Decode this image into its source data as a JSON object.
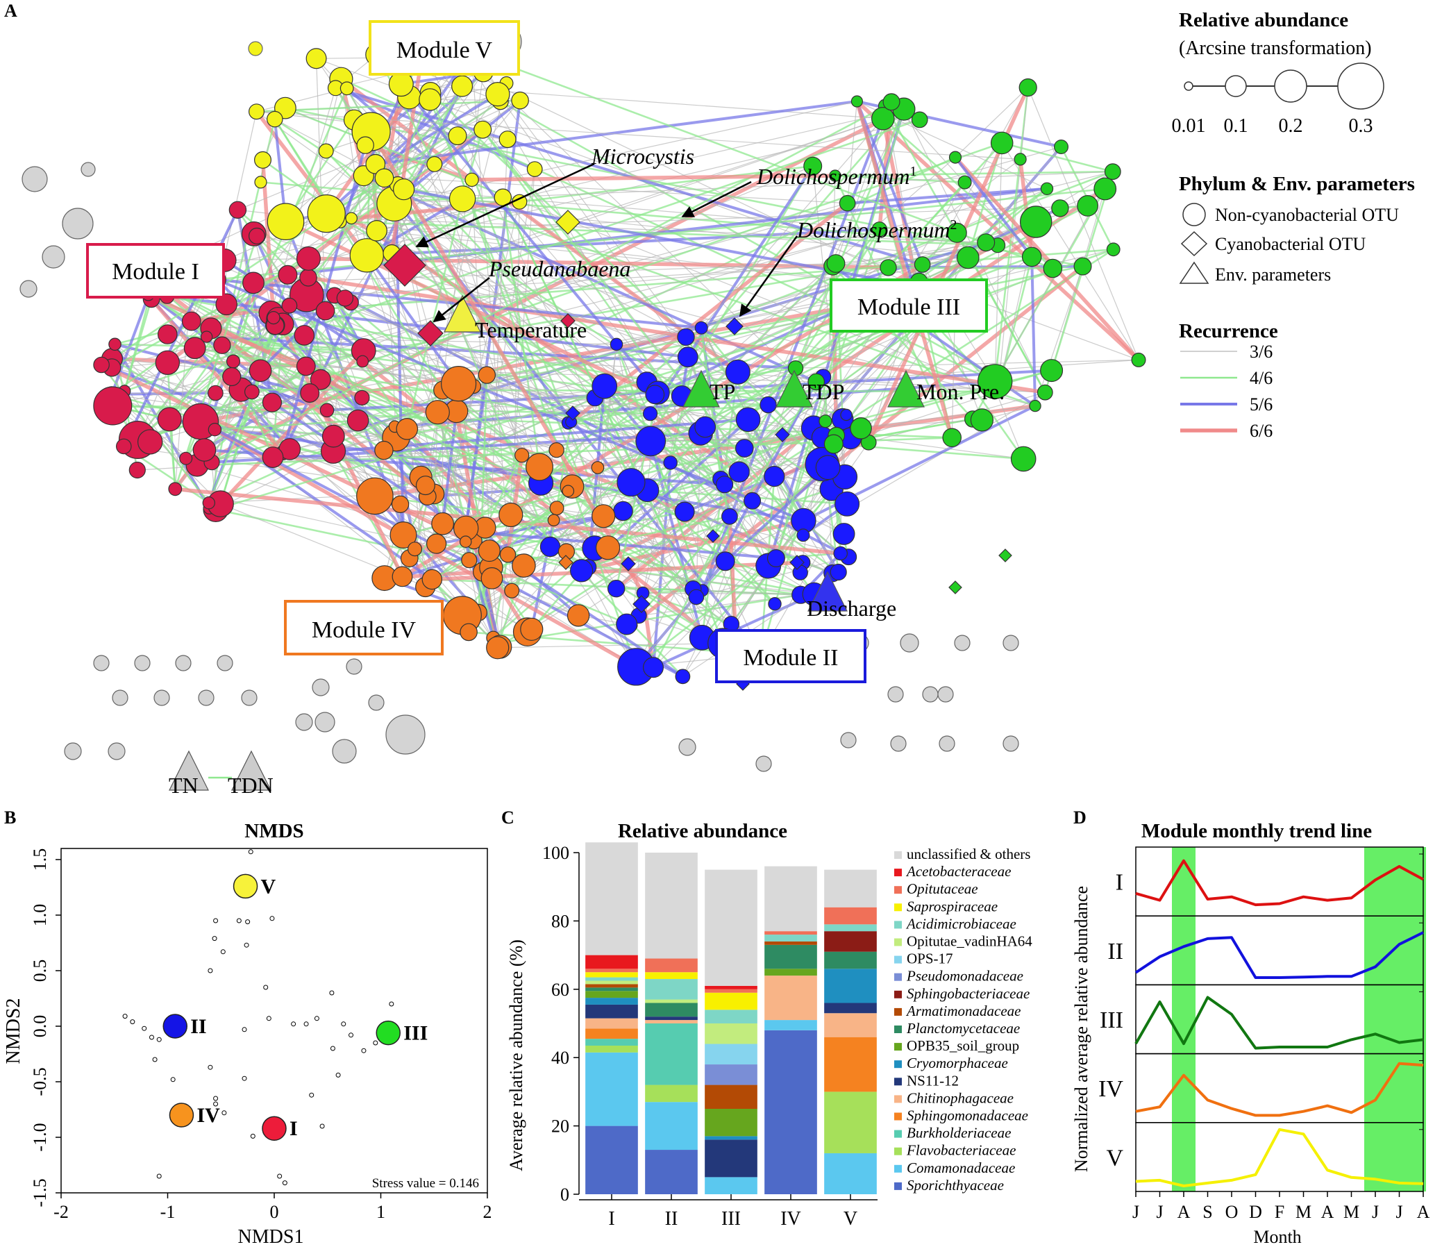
{
  "panel_labels": {
    "a": "A",
    "b": "B",
    "c": "C",
    "d": "D"
  },
  "network": {
    "modules": [
      {
        "label": "Module I",
        "color": "#d81b4b"
      },
      {
        "label": "Module II",
        "color": "#1a1aff"
      },
      {
        "label": "Module III",
        "color": "#22cc22"
      },
      {
        "label": "Module IV",
        "color": "#f07820"
      },
      {
        "label": "Module V",
        "color": "#f2f21a"
      }
    ],
    "annotations": {
      "microcystis": "Microcystis",
      "dolicho1": "Dolichospermum",
      "dolicho1_sup": "1",
      "dolicho2": "Dolichospermum",
      "dolicho2_sup": "2",
      "pseudanabaena": "Pseudanabaena"
    },
    "env_params": [
      "Temperature",
      "TP",
      "TDP",
      "Mon. Pre.",
      "Discharge",
      "TN",
      "TDN"
    ],
    "legend": {
      "size_title": "Relative abundance",
      "size_subtitle": "(Arcsine transformation)",
      "size_values": [
        "0.01",
        "0.1",
        "0.2",
        "0.3"
      ],
      "shape_title": "Phylum & Env. parameters",
      "shapes": [
        "Non-cyanobacterial OTU",
        "Cyanobacterial OTU",
        "Env. parameters"
      ],
      "rec_title": "Recurrence",
      "recurrence": [
        {
          "label": "3/6",
          "color": "#b5b5b5"
        },
        {
          "label": "4/6",
          "color": "#8fe88f"
        },
        {
          "label": "5/6",
          "color": "#7878e8"
        },
        {
          "label": "6/6",
          "color": "#f08a8a"
        }
      ]
    }
  },
  "chart_data": [
    {
      "type": "scatter",
      "title": "NMDS",
      "xlabel": "NMDS1",
      "ylabel": "NMDS2",
      "xlim": [
        -2,
        2
      ],
      "ylim": [
        -1.5,
        1.6
      ],
      "x_ticks": [
        "-2",
        "-1",
        "0",
        "1",
        "2"
      ],
      "y_ticks": [
        "-1.5",
        "-1.0",
        "-0.5",
        "0.0",
        "0.5",
        "1.0",
        "1.5"
      ],
      "stress_label": "Stress value = 0.146",
      "modules": [
        {
          "label": "I",
          "x": 0.0,
          "y": -0.92,
          "color": "#ed1c3a"
        },
        {
          "label": "II",
          "x": -0.93,
          "y": 0.0,
          "color": "#1414e6"
        },
        {
          "label": "III",
          "x": 1.07,
          "y": -0.06,
          "color": "#22dd22"
        },
        {
          "label": "IV",
          "x": -0.87,
          "y": -0.8,
          "color": "#f7931e"
        },
        {
          "label": "V",
          "x": -0.27,
          "y": 1.26,
          "color": "#f7f23a"
        }
      ],
      "otus": [
        [
          -0.22,
          1.57
        ],
        [
          -0.55,
          0.95
        ],
        [
          -0.33,
          0.95
        ],
        [
          -0.25,
          0.94
        ],
        [
          -0.02,
          0.97
        ],
        [
          -0.56,
          0.79
        ],
        [
          -0.48,
          0.67
        ],
        [
          -0.26,
          0.73
        ],
        [
          -0.6,
          0.5
        ],
        [
          -0.08,
          0.35
        ],
        [
          0.54,
          0.3
        ],
        [
          -1.4,
          0.09
        ],
        [
          -1.33,
          0.04
        ],
        [
          -1.22,
          -0.02
        ],
        [
          -1.15,
          -0.1
        ],
        [
          -1.08,
          -0.12
        ],
        [
          -1.12,
          -0.3
        ],
        [
          -0.95,
          -0.48
        ],
        [
          -0.6,
          -0.37
        ],
        [
          -0.28,
          -0.03
        ],
        [
          -0.05,
          0.07
        ],
        [
          0.18,
          0.02
        ],
        [
          0.3,
          0.02
        ],
        [
          0.4,
          0.07
        ],
        [
          0.65,
          0.02
        ],
        [
          0.72,
          -0.08
        ],
        [
          0.84,
          -0.22
        ],
        [
          0.55,
          -0.2
        ],
        [
          0.95,
          -0.15
        ],
        [
          1.1,
          0.2
        ],
        [
          0.6,
          -0.44
        ],
        [
          -0.28,
          -0.47
        ],
        [
          0.35,
          -0.62
        ],
        [
          -0.55,
          -0.7
        ],
        [
          -0.55,
          -0.65
        ],
        [
          -0.47,
          -0.78
        ],
        [
          -0.2,
          -0.99
        ],
        [
          0.45,
          -0.9
        ],
        [
          0.05,
          -1.35
        ],
        [
          0.1,
          -1.41
        ],
        [
          -1.08,
          -1.35
        ]
      ]
    },
    {
      "type": "bar",
      "stacked": true,
      "title": "Relative abundance",
      "ylabel": "Average relative abundance (%)",
      "ylim": [
        0,
        100
      ],
      "y_ticks": [
        "0",
        "20",
        "40",
        "60",
        "80",
        "100"
      ],
      "categories": [
        "I",
        "II",
        "III",
        "IV",
        "V"
      ],
      "series": [
        {
          "name": "Sporichthyaceae",
          "italic": true,
          "color": "#4e6ac8",
          "values": [
            20,
            13,
            0,
            48,
            0
          ]
        },
        {
          "name": "Comamonadaceae",
          "italic": true,
          "color": "#5bc8ef",
          "values": [
            21.5,
            14,
            5,
            3,
            12
          ]
        },
        {
          "name": "Flavobacteriaceae",
          "italic": true,
          "color": "#a6e05a",
          "values": [
            2,
            5,
            0,
            0,
            18
          ]
        },
        {
          "name": "Burkholderiaceae",
          "italic": true,
          "color": "#56ccb0",
          "values": [
            2,
            18,
            0,
            0,
            0
          ]
        },
        {
          "name": "Sphingomonadaceae",
          "italic": true,
          "color": "#f58220",
          "values": [
            3,
            0,
            0,
            0,
            16
          ]
        },
        {
          "name": "Chitinophagaceae",
          "italic": true,
          "color": "#f8b487",
          "values": [
            3,
            1,
            0,
            13,
            7
          ]
        },
        {
          "name": "NS11-12",
          "italic": false,
          "color": "#23387a",
          "values": [
            4,
            1,
            11,
            0,
            3
          ]
        },
        {
          "name": "Cryomorphaceae",
          "italic": true,
          "color": "#1f8fc0",
          "values": [
            2,
            0,
            1,
            0,
            10
          ]
        },
        {
          "name": "OPB35_soil_group",
          "italic": false,
          "color": "#66a61e",
          "values": [
            2,
            0,
            8,
            2,
            0
          ]
        },
        {
          "name": "Planctomycetaceae",
          "italic": true,
          "color": "#2e8b62",
          "values": [
            1,
            4,
            0,
            7,
            5
          ]
        },
        {
          "name": "Armatimonadaceae",
          "italic": true,
          "color": "#b34a05",
          "values": [
            1,
            0,
            7,
            1,
            0
          ]
        },
        {
          "name": "Sphingobacteriaceae",
          "italic": true,
          "color": "#8b1c16",
          "values": [
            0,
            0,
            0,
            0,
            6
          ]
        },
        {
          "name": "Pseudomonadaceae",
          "italic": true,
          "color": "#7a8ed6",
          "values": [
            0,
            0,
            6,
            0,
            0
          ]
        },
        {
          "name": "OPS-17",
          "italic": false,
          "color": "#86d4ee",
          "values": [
            0,
            0,
            6,
            0,
            0
          ]
        },
        {
          "name": "Opitutae_vadinHA64",
          "italic": false,
          "color": "#c2ec7e",
          "values": [
            1,
            1,
            6,
            0,
            0
          ]
        },
        {
          "name": "Acidimicrobiaceae",
          "italic": true,
          "color": "#7ed6c6",
          "values": [
            1,
            6,
            4,
            2,
            2
          ]
        },
        {
          "name": "Saprospiraceae",
          "italic": true,
          "color": "#f8f000",
          "values": [
            1.5,
            2,
            5,
            0,
            0
          ]
        },
        {
          "name": "Opitutaceae",
          "italic": true,
          "color": "#f07058",
          "values": [
            1,
            4,
            1,
            1,
            5
          ]
        },
        {
          "name": "Acetobacteraceae",
          "italic": true,
          "color": "#e8181e",
          "values": [
            4,
            0,
            1,
            0,
            0
          ]
        },
        {
          "name": "unclassified & others",
          "italic": false,
          "color": "#d9d9d9",
          "values": [
            33,
            31,
            34,
            19,
            11
          ]
        }
      ]
    },
    {
      "type": "line",
      "title": "Module monthly trend line",
      "xlabel": "Month",
      "ylabel": "Normalized average relative abundance",
      "x": [
        "J",
        "J",
        "A",
        "S",
        "O",
        "D",
        "F",
        "M",
        "A",
        "M",
        "J",
        "J",
        "A"
      ],
      "highlight_months": [
        [
          2,
          2
        ],
        [
          10,
          12
        ]
      ],
      "highlight_color": "#66ee66",
      "series": [
        {
          "name": "I",
          "color": "#dd1111",
          "values": [
            0.3,
            0.18,
            0.88,
            0.2,
            0.24,
            0.1,
            0.12,
            0.24,
            0.18,
            0.22,
            0.54,
            0.78,
            0.55
          ]
        },
        {
          "name": "II",
          "color": "#1111dd",
          "values": [
            0.12,
            0.4,
            0.58,
            0.72,
            0.74,
            0.03,
            0.03,
            0.04,
            0.05,
            0.05,
            0.22,
            0.62,
            0.83
          ]
        },
        {
          "name": "III",
          "color": "#117711",
          "values": [
            0.08,
            0.82,
            0.08,
            0.9,
            0.6,
            0.0,
            0.02,
            0.02,
            0.02,
            0.15,
            0.25,
            0.1,
            0.15
          ]
        },
        {
          "name": "IV",
          "color": "#f07010",
          "values": [
            0.1,
            0.18,
            0.74,
            0.3,
            0.15,
            0.03,
            0.03,
            0.1,
            0.2,
            0.08,
            0.3,
            0.95,
            0.92
          ]
        },
        {
          "name": "V",
          "color": "#f5f000",
          "values": [
            0.08,
            0.1,
            0.0,
            0.05,
            0.1,
            0.2,
            1.0,
            0.92,
            0.28,
            0.15,
            0.12,
            0.05,
            0.04
          ]
        }
      ]
    }
  ]
}
